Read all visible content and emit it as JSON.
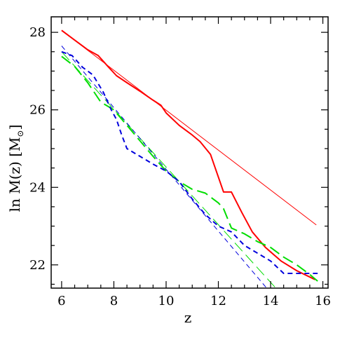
{
  "chart_data": {
    "type": "line",
    "xlabel": "z",
    "ylabel": "ln M(z)  [M",
    "ylabel_sub": "⊙",
    "ylabel_close": "]",
    "xlim": [
      5.6,
      16.2
    ],
    "ylim": [
      21.4,
      28.4
    ],
    "xticks": [
      6,
      8,
      10,
      12,
      14,
      16
    ],
    "yticks": [
      22,
      24,
      26,
      28
    ],
    "series": [
      {
        "color": "#ff0000",
        "style": "solid",
        "width": 2,
        "x": [
          6.0,
          6.5,
          7.0,
          7.4,
          7.8,
          8.1,
          8.5,
          9.0,
          9.5,
          9.8,
          10.0,
          10.5,
          11.0,
          11.3,
          11.7,
          12.2,
          12.4,
          12.5,
          12.9,
          13.3,
          13.8,
          14.4,
          15.0,
          15.7
        ],
        "y": [
          28.05,
          27.8,
          27.55,
          27.4,
          27.1,
          26.88,
          26.7,
          26.48,
          26.25,
          26.12,
          25.92,
          25.6,
          25.35,
          25.18,
          24.85,
          23.88,
          23.88,
          23.88,
          23.35,
          22.85,
          22.45,
          22.1,
          21.85,
          21.62
        ]
      },
      {
        "color": "#ff0000",
        "style": "solid",
        "width": 1,
        "x": [
          6.0,
          15.75
        ],
        "y": [
          28.05,
          23.03
        ]
      },
      {
        "color": "#00dd00",
        "style": "long-dash",
        "width": 2,
        "x": [
          6.0,
          6.5,
          7.0,
          7.5,
          8.0,
          8.5,
          9.0,
          9.5,
          10.0,
          10.5,
          11.0,
          11.5,
          12.0,
          12.2,
          12.5,
          13.0,
          13.5,
          14.0,
          14.5,
          15.0,
          15.5,
          15.8
        ],
        "y": [
          27.38,
          27.12,
          26.7,
          26.2,
          26.0,
          25.6,
          25.2,
          24.8,
          24.42,
          24.15,
          23.95,
          23.85,
          23.6,
          23.45,
          22.95,
          22.8,
          22.6,
          22.45,
          22.2,
          22.0,
          21.75,
          21.58
        ]
      },
      {
        "color": "#00dd00",
        "style": "long-dash",
        "width": 1,
        "x": [
          6.0,
          14.2
        ],
        "y": [
          27.5,
          21.4
        ]
      },
      {
        "color": "#0000dd",
        "style": "dash",
        "width": 2,
        "x": [
          6.0,
          6.4,
          6.8,
          7.2,
          7.6,
          7.9,
          8.1,
          8.3,
          8.5,
          9.0,
          9.5,
          10.0,
          10.5,
          11.0,
          11.5,
          12.0,
          12.5,
          13.0,
          13.5,
          14.0,
          14.5,
          15.0,
          15.5,
          15.8
        ],
        "y": [
          27.5,
          27.4,
          27.1,
          26.9,
          26.45,
          26.0,
          25.75,
          25.35,
          25.0,
          24.8,
          24.6,
          24.42,
          24.15,
          23.7,
          23.3,
          23.0,
          22.85,
          22.5,
          22.3,
          22.1,
          21.78,
          21.78,
          21.78,
          21.78
        ]
      },
      {
        "color": "#0000dd",
        "style": "dash",
        "width": 1,
        "x": [
          6.0,
          13.85
        ],
        "y": [
          27.65,
          21.4
        ]
      }
    ]
  }
}
